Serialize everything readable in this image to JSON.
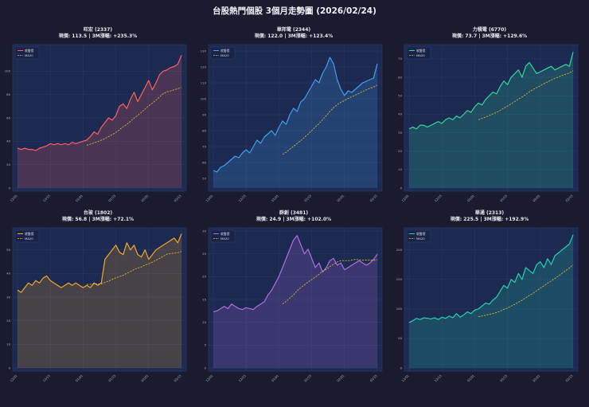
{
  "title": "台股熱門個股 3個月走勢圖 (2026/02/24)",
  "legend": {
    "price_label": "收盤價",
    "ma_label": "MA20"
  },
  "chart_data": [
    {
      "type": "line",
      "title": "旺宏 (2337)",
      "subtitle": "現價: 113.5 | 3M漲幅: +235.3%",
      "color": "#ff5f5f",
      "x_ticks": [
        "12/01",
        "12/15",
        "01/01",
        "01/15",
        "02/01",
        "02/15"
      ],
      "ylim": [
        0,
        120
      ],
      "yticks": [
        0,
        20,
        40,
        60,
        80,
        100
      ],
      "price": [
        34,
        33,
        34,
        33,
        33,
        32,
        34,
        35,
        36,
        38,
        37,
        38,
        37,
        38,
        37,
        39,
        38,
        39,
        40,
        41,
        44,
        48,
        46,
        52,
        56,
        60,
        58,
        62,
        70,
        72,
        68,
        76,
        82,
        74,
        80,
        86,
        92,
        84,
        90,
        97,
        100,
        101,
        103,
        104,
        106,
        113.5
      ],
      "ma20": [
        null,
        null,
        null,
        null,
        null,
        null,
        null,
        null,
        null,
        null,
        null,
        null,
        null,
        null,
        null,
        null,
        null,
        null,
        null,
        36.6,
        37.5,
        38.6,
        39.7,
        40.9,
        42.3,
        44.0,
        45.7,
        47.5,
        50.0,
        52.4,
        54.4,
        57.0,
        59.9,
        62.2,
        64.8,
        67.5,
        70.3,
        72.6,
        75.1,
        78.0,
        80.8,
        82.3,
        83.1,
        84.0,
        85.0,
        86.0
      ]
    },
    {
      "type": "line",
      "title": "華邦電 (2344)",
      "subtitle": "現價: 122.0 | 3M漲幅: +123.4%",
      "color": "#3fa0f0",
      "x_ticks": [
        "12/01",
        "12/15",
        "01/01",
        "01/15",
        "02/01",
        "02/15"
      ],
      "ylim": [
        44,
        132
      ],
      "yticks": [
        50,
        60,
        70,
        80,
        90,
        100,
        110,
        120,
        130
      ],
      "price": [
        55,
        54,
        57,
        58,
        60,
        62,
        64,
        63,
        66,
        68,
        66,
        70,
        74,
        72,
        76,
        78,
        80,
        77,
        82,
        86,
        84,
        90,
        94,
        92,
        98,
        100,
        104,
        108,
        112,
        110,
        116,
        120,
        126,
        122,
        112,
        106,
        102,
        105,
        104,
        106,
        108,
        110,
        111,
        112,
        113,
        122
      ],
      "ma20": [
        null,
        null,
        null,
        null,
        null,
        null,
        null,
        null,
        null,
        null,
        null,
        null,
        null,
        null,
        null,
        null,
        null,
        null,
        null,
        65,
        66.5,
        68.3,
        70.2,
        71.9,
        73.8,
        75.7,
        77.8,
        80.0,
        82.3,
        84.4,
        86.9,
        89.4,
        92.0,
        94.4,
        96.3,
        97.8,
        98.9,
        100.2,
        101.3,
        102.3,
        103.4,
        104.6,
        105.6,
        106.6,
        107.4,
        108.6
      ]
    },
    {
      "type": "line",
      "title": "力積電 (6770)",
      "subtitle": "現價: 73.7 | 3M漲幅: +129.6%",
      "color": "#2fd89a",
      "x_ticks": [
        "12/01",
        "12/15",
        "01/01",
        "01/15",
        "02/01",
        "02/15"
      ],
      "ylim": [
        0,
        76
      ],
      "yticks": [
        0,
        10,
        20,
        30,
        40,
        50,
        60,
        70
      ],
      "price": [
        32,
        33,
        32,
        34,
        34,
        33,
        34,
        35,
        36,
        35,
        37,
        38,
        37,
        39,
        38,
        40,
        42,
        41,
        44,
        46,
        45,
        48,
        50,
        52,
        51,
        55,
        58,
        56,
        60,
        62,
        64,
        60,
        66,
        68,
        65,
        62,
        63,
        64,
        65,
        66,
        64,
        65,
        66,
        67,
        66,
        73.7
      ],
      "ma20": [
        null,
        null,
        null,
        null,
        null,
        null,
        null,
        null,
        null,
        null,
        null,
        null,
        null,
        null,
        null,
        null,
        null,
        null,
        null,
        37.0,
        37.7,
        38.4,
        39.3,
        40.2,
        41.0,
        42.1,
        43.3,
        44.4,
        45.6,
        46.9,
        48.2,
        49.3,
        50.7,
        52.1,
        53.4,
        54.4,
        55.4,
        56.5,
        57.5,
        58.5,
        59.4,
        60.2,
        61.0,
        61.7,
        62.4,
        63.6
      ]
    },
    {
      "type": "line",
      "title": "台玻 (1802)",
      "subtitle": "現價: 56.8 | 3M漲幅: +72.1%",
      "color": "#f5a623",
      "x_ticks": [
        "12/01",
        "12/15",
        "01/01",
        "01/15",
        "02/01",
        "02/15"
      ],
      "ylim": [
        0,
        58
      ],
      "yticks": [
        0,
        10,
        20,
        30,
        40,
        50
      ],
      "price": [
        33,
        32,
        34,
        36,
        35,
        37,
        36,
        38,
        39,
        37,
        36,
        35,
        34,
        35,
        36,
        35,
        36,
        35,
        34,
        35,
        34,
        36,
        35,
        36,
        46,
        48,
        50,
        52,
        49,
        48,
        53,
        50,
        52,
        48,
        47,
        50,
        46,
        48,
        50,
        51,
        52,
        53,
        54,
        55,
        53,
        56.8
      ],
      "ma20": [
        null,
        null,
        null,
        null,
        null,
        null,
        null,
        null,
        null,
        null,
        null,
        null,
        null,
        null,
        null,
        null,
        null,
        null,
        null,
        35.4,
        35.4,
        35.6,
        35.6,
        35.6,
        36.2,
        36.8,
        37.5,
        38.2,
        38.7,
        39.2,
        40.1,
        40.8,
        41.7,
        42.3,
        42.8,
        43.6,
        44.1,
        44.8,
        45.6,
        46.4,
        47.3,
        48.2,
        48.4,
        48.6,
        48.8,
        49.3
      ]
    },
    {
      "type": "line",
      "title": "群創 (3481)",
      "subtitle": "現價: 24.9 | 3M漲幅: +102.0%",
      "color": "#b06ee0",
      "x_ticks": [
        "12/01",
        "12/15",
        "01/01",
        "01/15",
        "02/01",
        "02/15"
      ],
      "ylim": [
        0,
        30
      ],
      "yticks": [
        0,
        5,
        10,
        15,
        20,
        25,
        30
      ],
      "price": [
        12.3,
        12.5,
        13.0,
        13.5,
        13.0,
        14.0,
        13.5,
        13.0,
        12.8,
        13.2,
        13.0,
        12.8,
        13.5,
        14.0,
        14.5,
        16.0,
        17.0,
        18.5,
        20.0,
        22.0,
        24.0,
        26.0,
        28.0,
        29.0,
        27.0,
        25.0,
        26.0,
        24.0,
        22.0,
        23.0,
        21.0,
        22.0,
        23.5,
        24.0,
        22.5,
        23.0,
        21.5,
        22.0,
        22.5,
        23.0,
        23.5,
        23.0,
        22.5,
        23.0,
        23.8,
        24.9
      ],
      "ma20": [
        null,
        null,
        null,
        null,
        null,
        null,
        null,
        null,
        null,
        null,
        null,
        null,
        null,
        null,
        null,
        null,
        null,
        null,
        null,
        14.0,
        14.6,
        15.3,
        16.0,
        16.9,
        17.6,
        18.2,
        18.8,
        19.4,
        19.9,
        20.5,
        21.2,
        21.6,
        22.2,
        22.7,
        23.2,
        23.5,
        23.5,
        23.5,
        23.6,
        23.8,
        23.7,
        23.6,
        23.6,
        23.6,
        23.6,
        23.7
      ]
    },
    {
      "type": "line",
      "title": "華通 (2313)",
      "subtitle": "現價: 225.5 | 3M漲幅: +192.9%",
      "color": "#25d3b0",
      "x_ticks": [
        "12/01",
        "12/15",
        "01/01",
        "01/15",
        "02/01",
        "02/15"
      ],
      "ylim": [
        0,
        232
      ],
      "yticks": [
        0,
        50,
        100,
        150,
        200
      ],
      "price": [
        77,
        80,
        84,
        82,
        85,
        84,
        83,
        85,
        82,
        86,
        84,
        88,
        85,
        92,
        86,
        90,
        95,
        92,
        98,
        100,
        105,
        110,
        108,
        115,
        120,
        130,
        140,
        135,
        150,
        145,
        160,
        150,
        170,
        165,
        160,
        175,
        180,
        170,
        185,
        175,
        190,
        195,
        200,
        205,
        210,
        225.5
      ],
      "ma20": [
        null,
        null,
        null,
        null,
        null,
        null,
        null,
        null,
        null,
        null,
        null,
        null,
        null,
        null,
        null,
        null,
        null,
        null,
        null,
        86.6,
        87.9,
        89.4,
        90.6,
        92.2,
        94.0,
        96.3,
        99.1,
        101.6,
        104.8,
        107.7,
        111.5,
        114.6,
        118.9,
        122.8,
        126.5,
        130.8,
        135.1,
        139.1,
        143.5,
        147.3,
        151.6,
        155.9,
        160.5,
        165.0,
        169.5,
        174.8
      ]
    }
  ]
}
